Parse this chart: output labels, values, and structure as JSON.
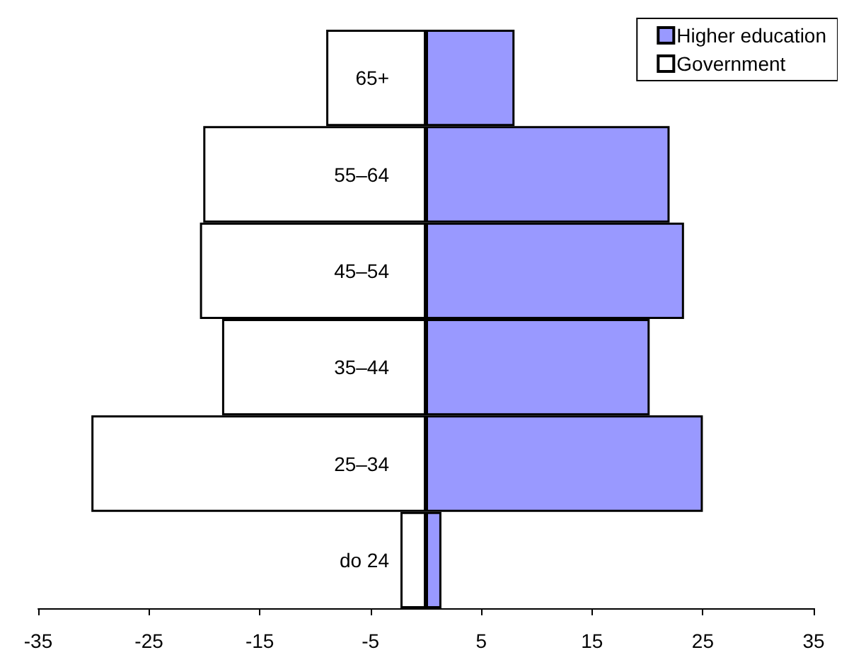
{
  "chart_data": {
    "type": "bar",
    "orientation": "horizontal",
    "stacked": true,
    "categories": [
      "65+",
      "55–64",
      "45–54",
      "35–44",
      "25–34",
      "do 24"
    ],
    "series": [
      {
        "name": "Higher education",
        "color": "#9999ff",
        "values": [
          8.0,
          22.0,
          23.3,
          20.2,
          25.0,
          1.4
        ]
      },
      {
        "name": "Government",
        "color": "#ffffff",
        "values": [
          -9.0,
          -20.1,
          -20.4,
          -18.4,
          -30.2,
          -2.3
        ]
      }
    ],
    "xlim": [
      -35,
      35
    ],
    "xticks": [
      -35,
      -25,
      -15,
      -5,
      5,
      15,
      25,
      35
    ],
    "grid": false,
    "legend": "top right"
  }
}
